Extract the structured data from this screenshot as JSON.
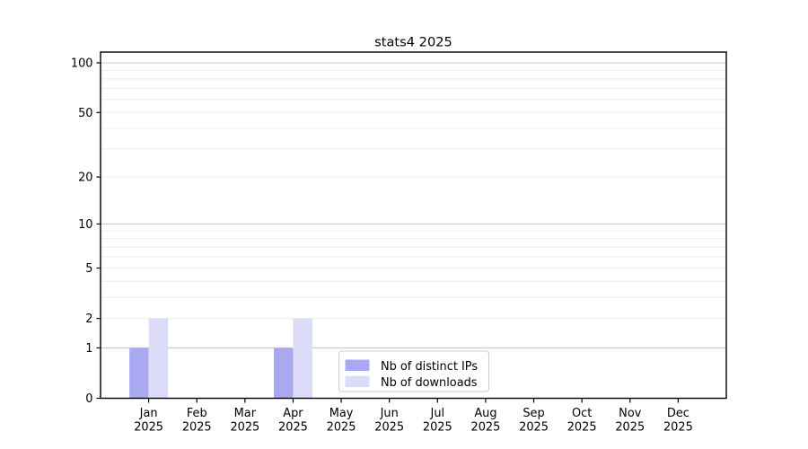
{
  "chart_data": {
    "type": "bar",
    "title": "stats4 2025",
    "year": "2025",
    "categories": [
      "Jan",
      "Feb",
      "Mar",
      "Apr",
      "May",
      "Jun",
      "Jul",
      "Aug",
      "Sep",
      "Oct",
      "Nov",
      "Dec"
    ],
    "series": [
      {
        "name": "Nb of distinct IPs",
        "color": "#a9a9f2",
        "values": [
          1,
          0,
          0,
          1,
          0,
          0,
          0,
          0,
          0,
          0,
          0,
          0
        ]
      },
      {
        "name": "Nb of downloads",
        "color": "#dcdcf9",
        "values": [
          2,
          0,
          0,
          2,
          0,
          0,
          0,
          0,
          0,
          0,
          0,
          0
        ]
      }
    ],
    "y_axis": {
      "scale": "log1p",
      "max": 100,
      "tick_values": [
        0,
        1,
        2,
        5,
        10,
        20,
        50,
        100
      ],
      "tick_labels": [
        "0",
        "1",
        "2",
        "5",
        "10",
        "20",
        "50",
        "100"
      ],
      "decade_gridline_values": [
        1,
        10,
        100
      ],
      "minor_gridline_values": [
        3,
        4,
        6,
        7,
        8,
        9,
        30,
        40,
        60,
        70,
        80,
        90
      ]
    },
    "legend": {
      "position": "lower center"
    },
    "grid_colors": {
      "major": "#c8c8c8",
      "minor": "#ececec"
    },
    "axis_color": "#000000",
    "background": "#ffffff"
  }
}
